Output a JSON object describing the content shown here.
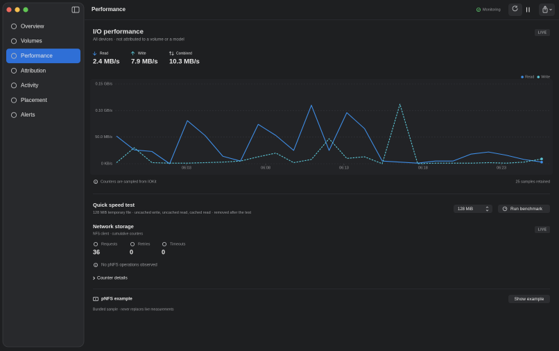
{
  "window": {
    "title": "Performance",
    "status": "Monitoring"
  },
  "sidebar": {
    "items": [
      "Overview",
      "Volumes",
      "Performance",
      "Attribution",
      "Activity",
      "Placement",
      "Alerts"
    ],
    "selected": 2
  },
  "io": {
    "title": "I/O performance",
    "subtitle": "All devices · not attributed to a volume or a model",
    "badge": "LIVE",
    "stats": [
      {
        "label": "Read",
        "value": "2.4 MB/s"
      },
      {
        "label": "Write",
        "value": "7.9 MB/s"
      },
      {
        "label": "Combined",
        "value": "10.3 MB/s"
      }
    ],
    "footer_note": "Counters are sampled from IOKit",
    "samples_note": "25 samples retained"
  },
  "chart_data": {
    "type": "line",
    "x": [
      0,
      1,
      2,
      3,
      4,
      5,
      6,
      7,
      8,
      9,
      10,
      11,
      12,
      13,
      14,
      15,
      16,
      17,
      18,
      19,
      20,
      21,
      22,
      23,
      24
    ],
    "series": [
      {
        "name": "Read",
        "color": "#3f8ee6",
        "dashed": false,
        "values": [
          52,
          26,
          23,
          0,
          81,
          53,
          14,
          5,
          74,
          53,
          25,
          110,
          25,
          96,
          66,
          5,
          3,
          1,
          5,
          5,
          18,
          22,
          16,
          8,
          3
        ]
      },
      {
        "name": "Write",
        "color": "#5cc6d6",
        "dashed": true,
        "values": [
          2,
          30,
          2,
          1,
          1,
          2,
          3,
          5,
          13,
          20,
          2,
          8,
          47,
          10,
          13,
          0,
          112,
          0,
          1,
          1,
          1,
          2,
          1,
          3,
          9
        ]
      }
    ],
    "xlim": [
      0,
      24
    ],
    "xticks": [
      {
        "value": 3.95,
        "label": "06:03"
      },
      {
        "value": 8.42,
        "label": "06:08"
      },
      {
        "value": 12.84,
        "label": "06:13"
      },
      {
        "value": 17.3,
        "label": "06:18"
      },
      {
        "value": 21.73,
        "label": "06:23"
      }
    ],
    "ylim": [
      0,
      150
    ],
    "yticks": [
      {
        "value": 0,
        "label": "0 KB/s"
      },
      {
        "value": 50,
        "label": "50.0 MB/s"
      },
      {
        "value": 100,
        "label": "0.10 GB/s"
      },
      {
        "value": 150,
        "label": "0.15 GB/s"
      }
    ],
    "grid": true,
    "legend": "top-right"
  },
  "speed_test": {
    "title": "Quick speed test",
    "subtitle": "128 MiB temporary file · uncached write, uncached read, cached read · removed after the test",
    "size": "128 MiB",
    "button": "Run benchmark"
  },
  "network": {
    "title": "Network storage",
    "subtitle": "NFS client · cumulative counters",
    "badge": "LIVE",
    "counters": [
      {
        "label": "Requests",
        "value": 36
      },
      {
        "label": "Retries",
        "value": 0
      },
      {
        "label": "Timeouts",
        "value": 0
      }
    ],
    "note": "No pNFS operations observed",
    "disclosure": "Counter details"
  },
  "example": {
    "title": "pNFS example",
    "subtitle": "Bundled sample · never replaces live measurements",
    "button": "Show example"
  }
}
